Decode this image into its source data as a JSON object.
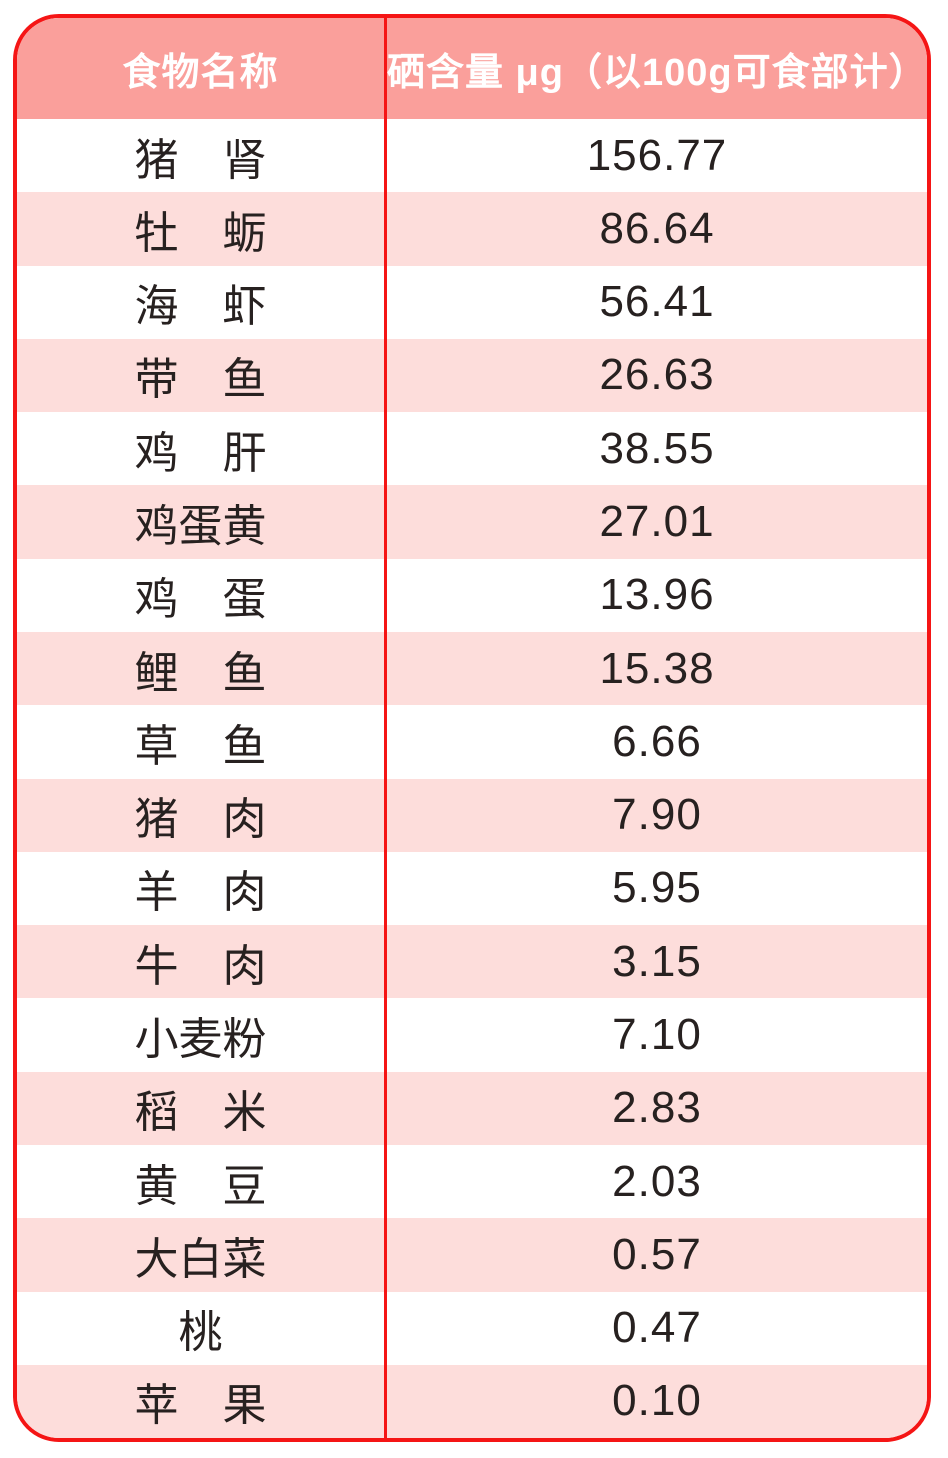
{
  "colors": {
    "header_bg": "#FA9F9B",
    "row_pink": "#FDDDDB",
    "row_white": "#FFFFFF",
    "border_red": "#F51515",
    "text_dark": "#272120",
    "header_text": "#FFFFFF"
  },
  "table": {
    "header": {
      "food_name": "食物名称",
      "selenium": "硒含量 μg（以100g可食部计）"
    },
    "rows": [
      {
        "food": "猪　肾",
        "value": "156.77"
      },
      {
        "food": "牡　蛎",
        "value": "86.64"
      },
      {
        "food": "海　虾",
        "value": "56.41"
      },
      {
        "food": "带　鱼",
        "value": "26.63"
      },
      {
        "food": "鸡　肝",
        "value": "38.55"
      },
      {
        "food": "鸡蛋黄",
        "value": "27.01"
      },
      {
        "food": "鸡　蛋",
        "value": "13.96"
      },
      {
        "food": "鲤　鱼",
        "value": "15.38"
      },
      {
        "food": "草　鱼",
        "value": "6.66"
      },
      {
        "food": "猪　肉",
        "value": "7.90"
      },
      {
        "food": "羊　肉",
        "value": "5.95"
      },
      {
        "food": "牛　肉",
        "value": "3.15"
      },
      {
        "food": "小麦粉",
        "value": "7.10"
      },
      {
        "food": "稻　米",
        "value": "2.83"
      },
      {
        "food": "黄　豆",
        "value": "2.03"
      },
      {
        "food": "大白菜",
        "value": "0.57"
      },
      {
        "food": "桃",
        "value": "0.47"
      },
      {
        "food": "苹　果",
        "value": "0.10"
      }
    ]
  },
  "chart_data": {
    "type": "table",
    "columns": [
      "食物名称",
      "硒含量 μg（以100g可食部计）"
    ],
    "categories": [
      "猪肾",
      "牡蛎",
      "海虾",
      "带鱼",
      "鸡肝",
      "鸡蛋黄",
      "鸡蛋",
      "鲤鱼",
      "草鱼",
      "猪肉",
      "羊肉",
      "牛肉",
      "小麦粉",
      "稻米",
      "黄豆",
      "大白菜",
      "桃",
      "苹果"
    ],
    "values": [
      156.77,
      86.64,
      56.41,
      26.63,
      38.55,
      27.01,
      13.96,
      15.38,
      6.66,
      7.9,
      5.95,
      3.15,
      7.1,
      2.83,
      2.03,
      0.57,
      0.47,
      0.1
    ],
    "unit": "μg per 100g edible portion",
    "layout": {
      "alternating_rows": true,
      "first_data_row_bg": "white",
      "header_bg": "#FA9F9B"
    }
  }
}
